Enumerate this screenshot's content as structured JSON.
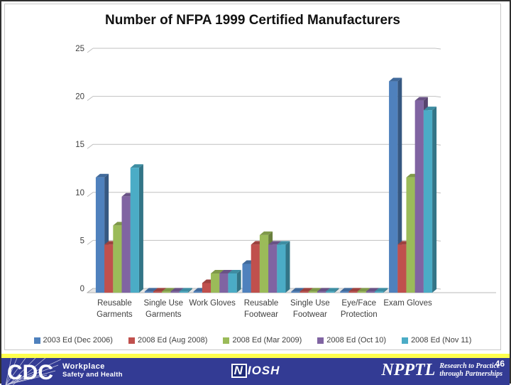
{
  "slide": {
    "number": "46"
  },
  "chart_data": {
    "type": "bar",
    "style": "3d",
    "title": "Number of NFPA 1999 Certified Manufacturers",
    "categories": [
      "Reusable Garments",
      "Single Use Garments",
      "Work Gloves",
      "Reusable Footwear",
      "Single Use Footwear",
      "Eye/Face Protection",
      "Exam Gloves"
    ],
    "category_label_lines": [
      [
        "Reusable",
        "Garments"
      ],
      [
        "Single Use",
        "Garments"
      ],
      [
        "Work Gloves"
      ],
      [
        "Reusable",
        "Footwear"
      ],
      [
        "Single Use",
        "Footwear"
      ],
      [
        "Eye/Face",
        "Protection"
      ],
      [
        "Exam Gloves"
      ]
    ],
    "series": [
      {
        "name": "2003 Ed (Dec 2006)",
        "color": "#4F81BD",
        "values": [
          12,
          0,
          0,
          3,
          0,
          0,
          22
        ]
      },
      {
        "name": "2008 Ed (Aug 2008)",
        "color": "#C0504D",
        "values": [
          5,
          0,
          1,
          5,
          0,
          0,
          5
        ]
      },
      {
        "name": "2008 Ed (Mar 2009)",
        "color": "#9BBB59",
        "values": [
          7,
          0,
          2,
          6,
          0,
          0,
          12
        ]
      },
      {
        "name": "2008 Ed (Oct 10)",
        "color": "#8064A2",
        "values": [
          10,
          0,
          2,
          5,
          0,
          0,
          20
        ]
      },
      {
        "name": "2008 Ed (Nov 11)",
        "color": "#4BACC6",
        "values": [
          13,
          0,
          2,
          5,
          0,
          0,
          19
        ]
      }
    ],
    "y_ticks": [
      0,
      5,
      10,
      15,
      20,
      25
    ],
    "ylim": [
      0,
      25
    ],
    "xlabel": "",
    "ylabel": "",
    "grid": true,
    "legend_position": "bottom"
  },
  "footer": {
    "cdc_logo_text": "CDC",
    "cdc_tagline_line1": "Workplace",
    "cdc_tagline_line2": "Safety and Health",
    "niosh_logo_n": "N",
    "niosh_logo_rest": "IOSH",
    "npptl_logo_text": "NPPTL",
    "npptl_tagline_line1": "Research to Practice",
    "npptl_tagline_line2": "through Partnerships",
    "colors": {
      "band": "#333b94",
      "accent_line": "#ffff4d",
      "grid": "#c0c0c0",
      "axis_text": "#3f3f3f"
    }
  }
}
